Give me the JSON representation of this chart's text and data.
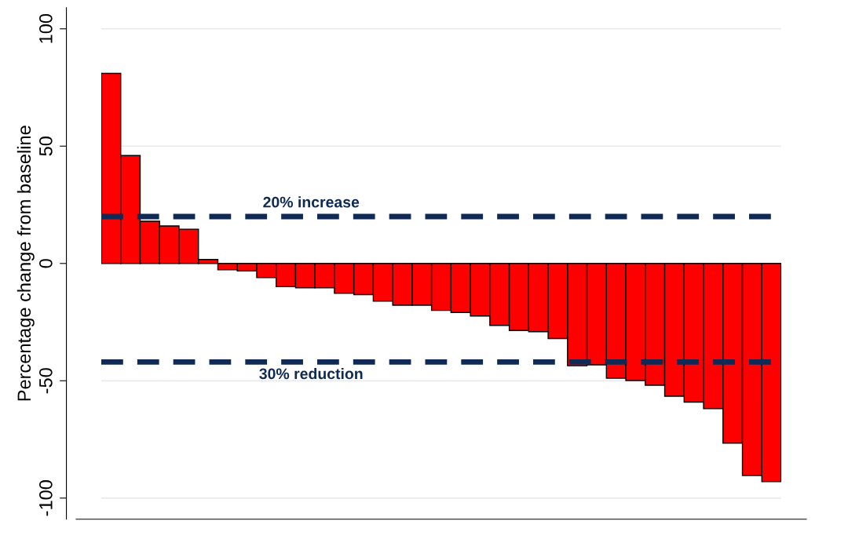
{
  "chart_data": {
    "type": "bar",
    "ylabel": "Percentage change from baseline",
    "categories": [
      null,
      null,
      null,
      null,
      null,
      null,
      null,
      null,
      null,
      null,
      null,
      null,
      null,
      null,
      null,
      null,
      null,
      null,
      null,
      null,
      null,
      null,
      null,
      null,
      null,
      null,
      null,
      null,
      null,
      null,
      null,
      null,
      null,
      null,
      null
    ],
    "values": [
      81,
      46,
      18,
      16,
      14.6,
      1.7,
      -2.7,
      -3.2,
      -6,
      -9.9,
      -10.4,
      -10.4,
      -12.7,
      -13.3,
      -16.1,
      -17.8,
      -17.8,
      -20,
      -20.9,
      -22.4,
      -26.4,
      -28.6,
      -29.1,
      -32,
      -43.6,
      -43.2,
      -48.9,
      -49.9,
      -51.9,
      -56.6,
      -59.1,
      -61.9,
      -76.6,
      -90.4,
      -93
    ],
    "color": "#ff0000",
    "ylim": [
      -109,
      109
    ],
    "yticks": [
      -100,
      -50,
      0,
      50,
      100
    ],
    "grid": "y",
    "tick_labels": "y",
    "ref_lines": [
      {
        "axis": "y",
        "value": 20,
        "label": "20% increase",
        "color": "#0f2a54",
        "line_style": "dashed"
      },
      {
        "axis": "y",
        "value": -42,
        "label": "30% reduction",
        "color": "#0f2a54",
        "line_style": "dashed"
      }
    ]
  }
}
